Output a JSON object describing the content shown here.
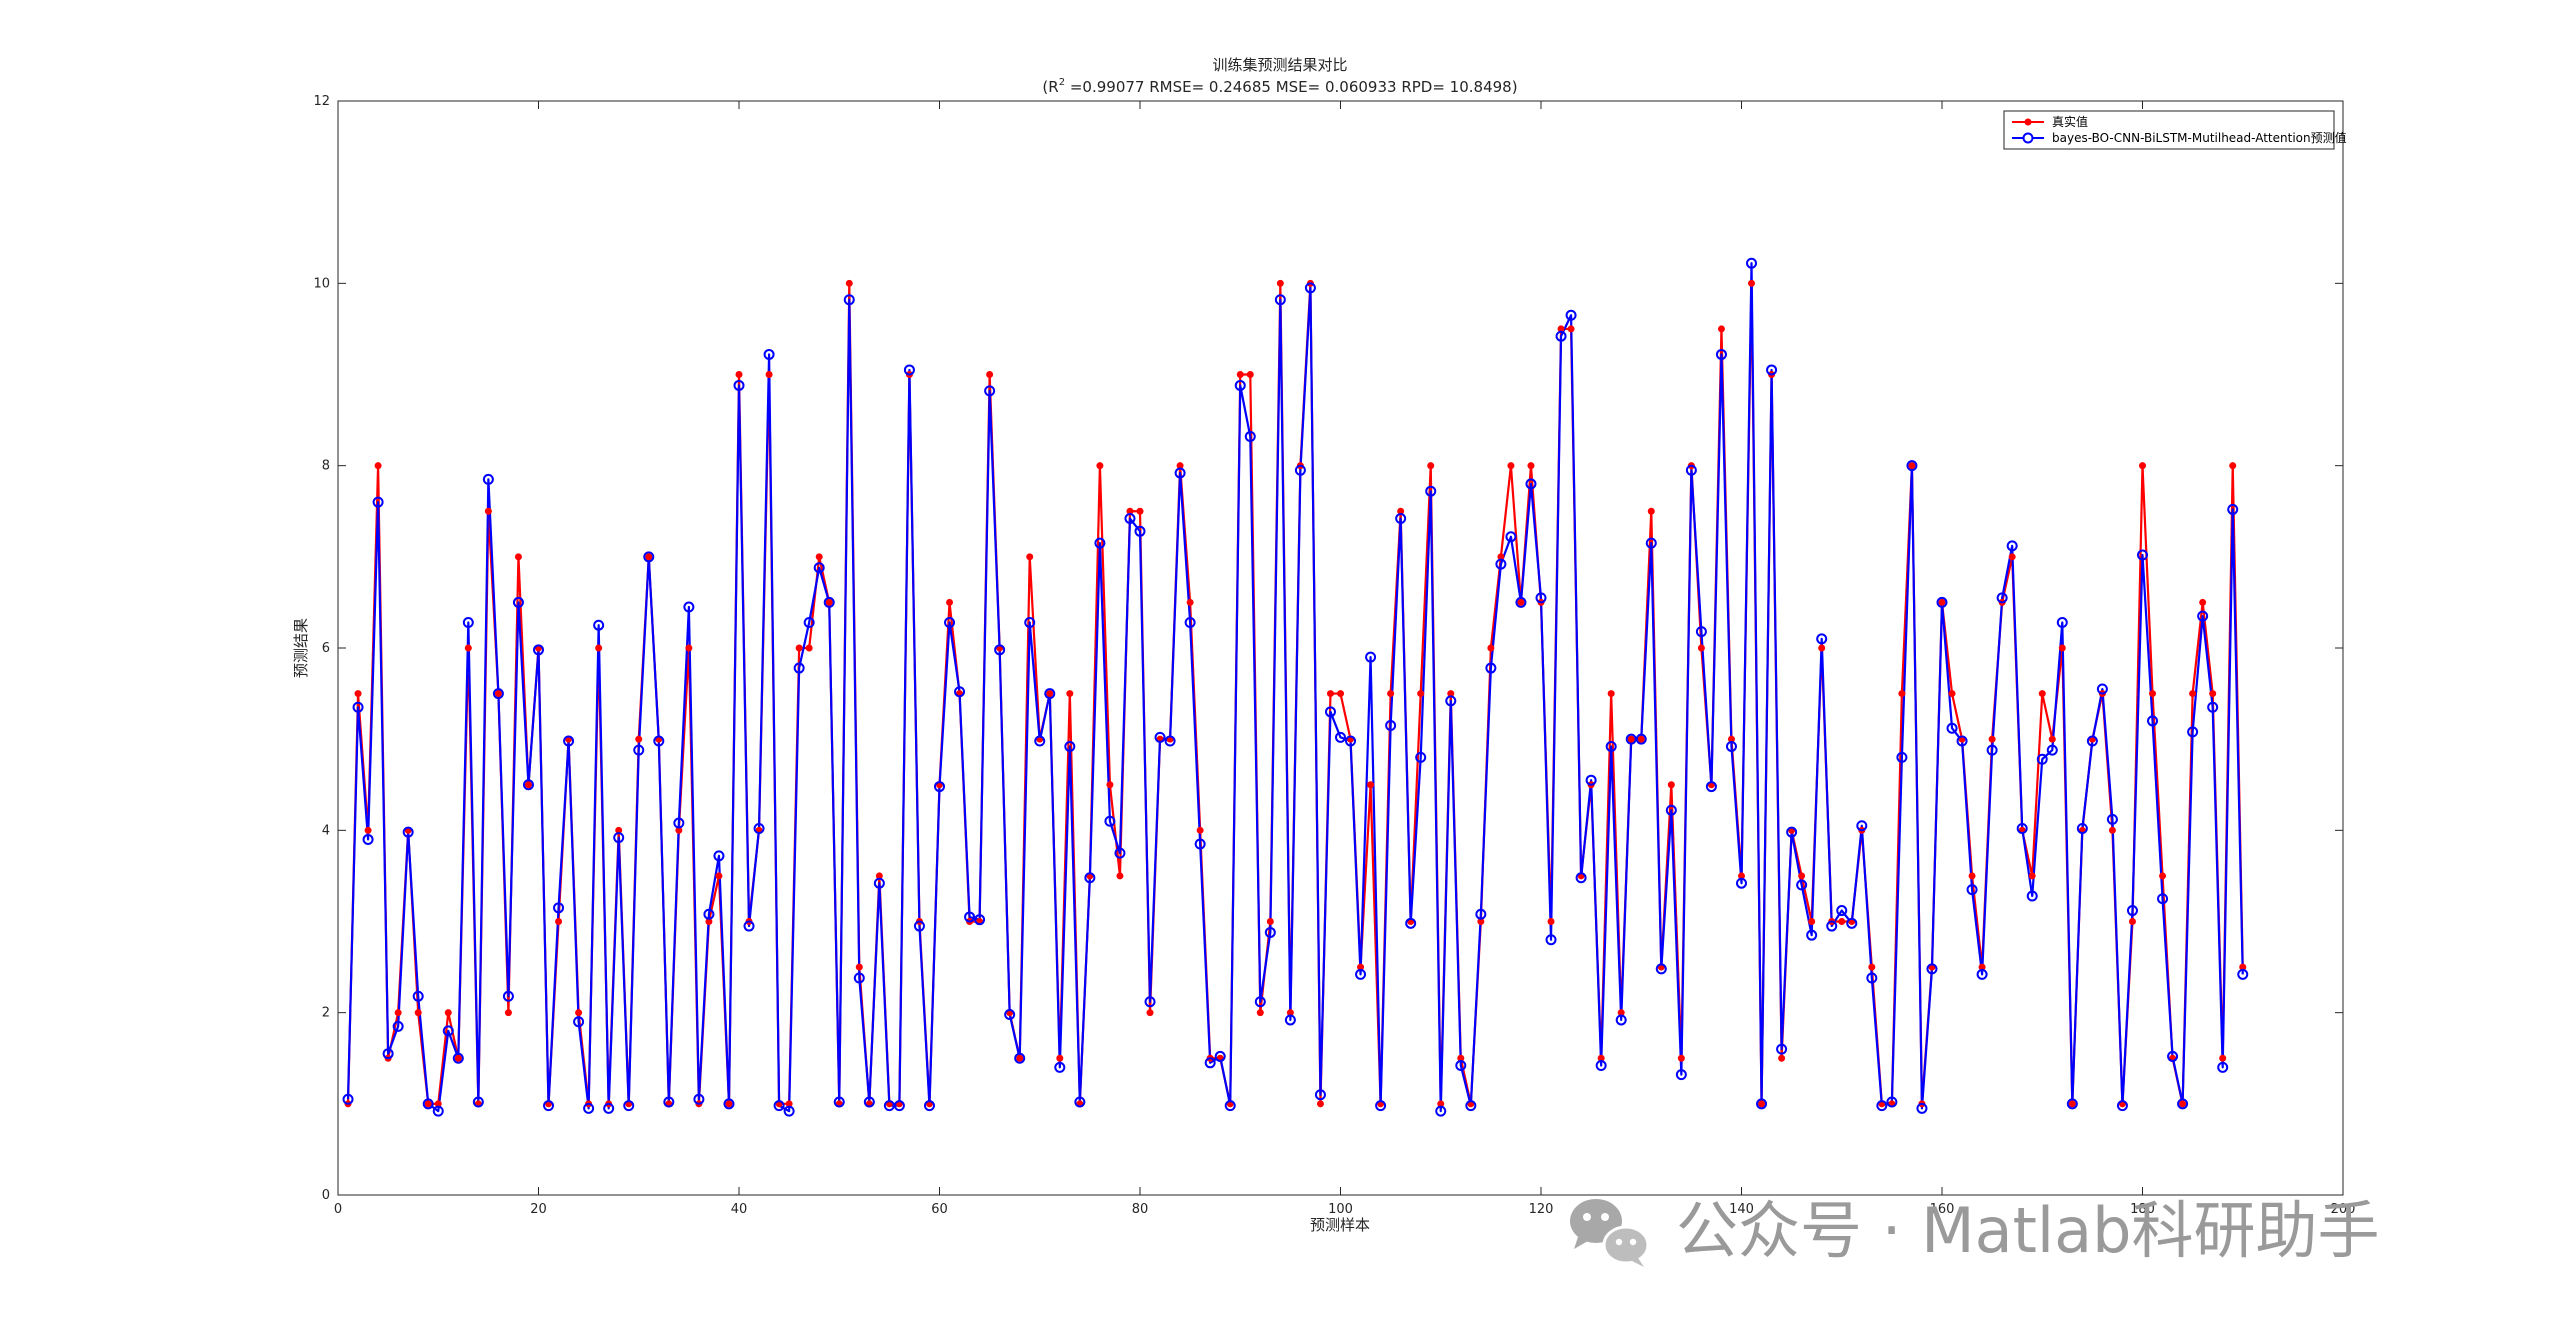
{
  "watermark": {
    "text": "公众号 · Matlab科研助手",
    "icon": "wechat-icon"
  },
  "chart_data": {
    "type": "line",
    "title": "训练集预测结果对比",
    "subtitle_prefix": "(R",
    "subtitle_sup": "2",
    "subtitle_rest": " =0.99077 RMSE= 0.24685 MSE= 0.060933 RPD= 10.8498)",
    "xlabel": "预测样本",
    "ylabel": "预测结果",
    "xlim": [
      0,
      200
    ],
    "ylim": [
      0,
      12
    ],
    "xticks": [
      0,
      20,
      40,
      60,
      80,
      100,
      120,
      140,
      160,
      180,
      200
    ],
    "yticks": [
      0,
      2,
      4,
      6,
      8,
      10,
      12
    ],
    "grid": false,
    "legend_position": "top-right",
    "series": [
      {
        "name": "真实值",
        "color": "#ff0000",
        "marker": "filled-dot",
        "values": [
          1,
          5.5,
          4,
          8,
          1.5,
          2,
          4,
          2,
          1,
          1,
          2,
          1.5,
          6,
          1,
          7.5,
          5.5,
          2,
          7,
          4.5,
          6,
          1,
          3,
          5,
          2,
          1,
          6,
          1,
          4,
          1,
          5,
          7,
          5,
          1,
          4,
          6,
          1,
          3,
          3.5,
          1,
          9,
          3,
          4,
          9,
          1,
          1,
          6,
          6,
          7,
          6.5,
          1,
          10,
          2.5,
          1,
          3.5,
          1,
          1,
          9,
          3,
          1,
          4.5,
          6.5,
          5.5,
          3,
          3,
          9,
          6,
          2,
          1.5,
          7,
          5,
          5.5,
          1.5,
          5.5,
          1,
          3.5,
          8,
          4.5,
          3.5,
          7.5,
          7.5,
          2,
          5,
          5,
          8,
          6.5,
          4,
          1.5,
          1.5,
          1,
          9,
          9,
          2,
          3,
          10,
          2,
          8,
          10,
          1,
          5.5,
          5.5,
          5,
          2.5,
          4.5,
          1,
          5.5,
          7.5,
          3,
          5.5,
          8,
          1,
          5.5,
          1.5,
          1,
          3,
          6,
          7,
          8,
          6.5,
          8,
          6.5,
          3,
          9.5,
          9.5,
          3.5,
          4.5,
          1.5,
          5.5,
          2,
          5,
          5,
          7.5,
          2.5,
          4.5,
          1.5,
          8,
          6,
          4.5,
          9.5,
          5,
          3.5,
          10,
          1,
          9,
          1.5,
          4,
          3.5,
          3,
          6,
          3,
          3,
          3,
          4,
          2.5,
          1,
          1,
          5.5,
          8,
          1,
          2.5,
          6.5,
          5.5,
          5,
          3.5,
          2.5,
          5,
          6.5,
          7,
          4,
          3.5,
          5.5,
          5,
          6,
          1,
          4,
          5,
          5.5,
          4,
          1,
          3,
          8,
          5.5,
          3.5,
          1.5,
          1,
          5.5,
          6.5,
          5.5,
          1.5,
          8,
          2.5
        ]
      },
      {
        "name": "bayes-BO-CNN-BiLSTM-Mutilhead-Attention预测值",
        "color": "#0000ff",
        "marker": "open-circle",
        "values": [
          1.05,
          5.35,
          3.9,
          7.6,
          1.55,
          1.85,
          3.98,
          2.18,
          1,
          0.92,
          1.8,
          1.5,
          6.28,
          1.02,
          7.85,
          5.5,
          2.18,
          6.5,
          4.5,
          5.98,
          0.98,
          3.15,
          4.98,
          1.9,
          0.95,
          6.25,
          0.95,
          3.92,
          0.98,
          4.88,
          7,
          4.98,
          1.02,
          4.08,
          6.45,
          1.05,
          3.08,
          3.72,
          1,
          8.88,
          2.95,
          4.02,
          9.22,
          0.98,
          0.92,
          5.78,
          6.28,
          6.88,
          6.5,
          1.02,
          9.82,
          2.38,
          1.02,
          3.42,
          0.98,
          0.98,
          9.05,
          2.95,
          0.98,
          4.48,
          6.28,
          5.52,
          3.05,
          3.02,
          8.82,
          5.98,
          1.98,
          1.5,
          6.28,
          4.98,
          5.5,
          1.4,
          4.92,
          1.02,
          3.48,
          7.15,
          4.1,
          3.75,
          7.42,
          7.28,
          2.12,
          5.02,
          4.98,
          7.92,
          6.28,
          3.85,
          1.45,
          1.52,
          0.98,
          8.88,
          8.32,
          2.12,
          2.88,
          9.82,
          1.92,
          7.95,
          9.95,
          1.1,
          5.3,
          5.02,
          4.98,
          2.42,
          5.9,
          0.98,
          5.15,
          7.42,
          2.98,
          4.8,
          7.72,
          0.92,
          5.42,
          1.42,
          0.98,
          3.08,
          5.78,
          6.92,
          7.22,
          6.5,
          7.8,
          6.55,
          2.8,
          9.42,
          9.65,
          3.48,
          4.55,
          1.42,
          4.92,
          1.92,
          5,
          5,
          7.15,
          2.48,
          4.22,
          1.32,
          7.95,
          6.18,
          4.48,
          9.22,
          4.92,
          3.42,
          10.22,
          1,
          9.05,
          1.6,
          3.98,
          3.4,
          2.85,
          6.1,
          2.95,
          3.12,
          2.98,
          4.05,
          2.38,
          0.98,
          1.02,
          4.8,
          8,
          0.95,
          2.48,
          6.5,
          5.12,
          4.98,
          3.35,
          2.42,
          4.88,
          6.55,
          7.12,
          4.02,
          3.28,
          4.78,
          4.88,
          6.28,
          1,
          4.02,
          4.98,
          5.55,
          4.12,
          0.98,
          3.12,
          7.02,
          5.2,
          3.25,
          1.52,
          1,
          5.08,
          6.35,
          5.35,
          1.4,
          7.52,
          2.42
        ]
      }
    ]
  }
}
